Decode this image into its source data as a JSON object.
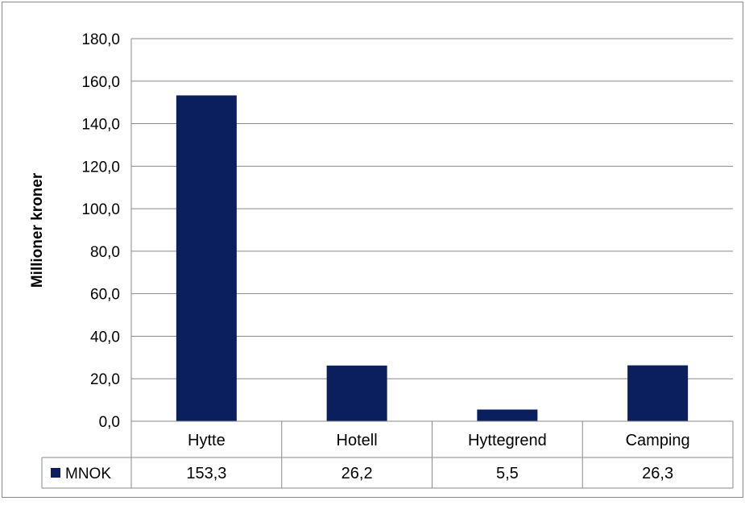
{
  "chart_data": {
    "type": "bar",
    "ylabel": "Millioner kroner",
    "ylim": [
      0,
      180
    ],
    "ytick_step": 20,
    "ytick_labels": [
      "0,0",
      "20,0",
      "40,0",
      "60,0",
      "80,0",
      "100,0",
      "120,0",
      "140,0",
      "160,0",
      "180,0"
    ],
    "grid": true,
    "categories": [
      "Hytte",
      "Hotell",
      "Hyttegrend",
      "Camping"
    ],
    "series": [
      {
        "name": "MNOK",
        "values": [
          153.3,
          26.2,
          5.5,
          26.3
        ],
        "value_labels": [
          "153,3",
          "26,2",
          "5,5",
          "26,3"
        ],
        "color": "#0B1F5F"
      }
    ],
    "data_table": true
  }
}
